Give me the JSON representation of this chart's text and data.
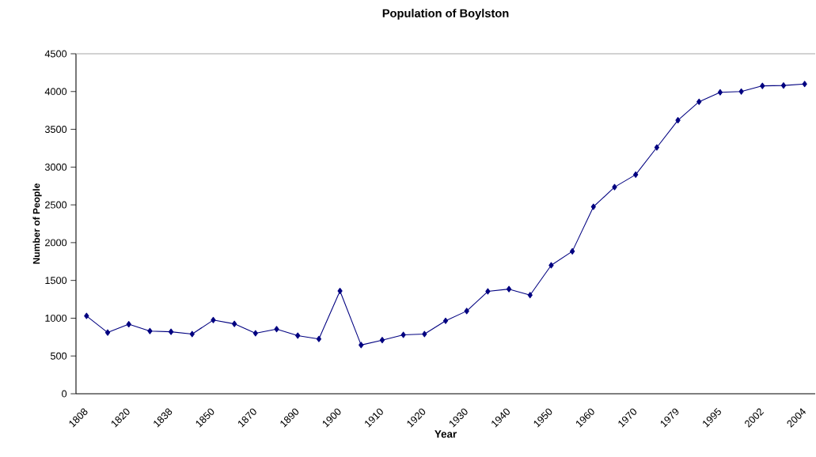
{
  "chart_data": {
    "type": "line",
    "title": "Population of Boylston",
    "xlabel": "Year",
    "ylabel": "Number of People",
    "categories": [
      "1808",
      null,
      "1820",
      null,
      "1838",
      null,
      "1850",
      null,
      "1870",
      null,
      "1890",
      null,
      "1900",
      null,
      "1910",
      null,
      "1920",
      null,
      "1930",
      null,
      "1940",
      null,
      "1950",
      null,
      "1960",
      null,
      "1970",
      null,
      "1979",
      null,
      "1995",
      null,
      "2002",
      null,
      "2004"
    ],
    "values": [
      1030,
      810,
      920,
      830,
      820,
      790,
      975,
      925,
      800,
      855,
      770,
      725,
      1360,
      645,
      710,
      780,
      790,
      965,
      1095,
      1355,
      1385,
      1305,
      1700,
      1885,
      2475,
      2735,
      2900,
      3260,
      3620,
      3865,
      3990,
      4000,
      4075,
      4080,
      4100
    ],
    "color": "#000080",
    "marker": "diamond",
    "ylim": [
      0,
      4500
    ],
    "yticks": [
      0,
      500,
      1000,
      1500,
      2000,
      2500,
      3000,
      3500,
      4000,
      4500
    ]
  }
}
